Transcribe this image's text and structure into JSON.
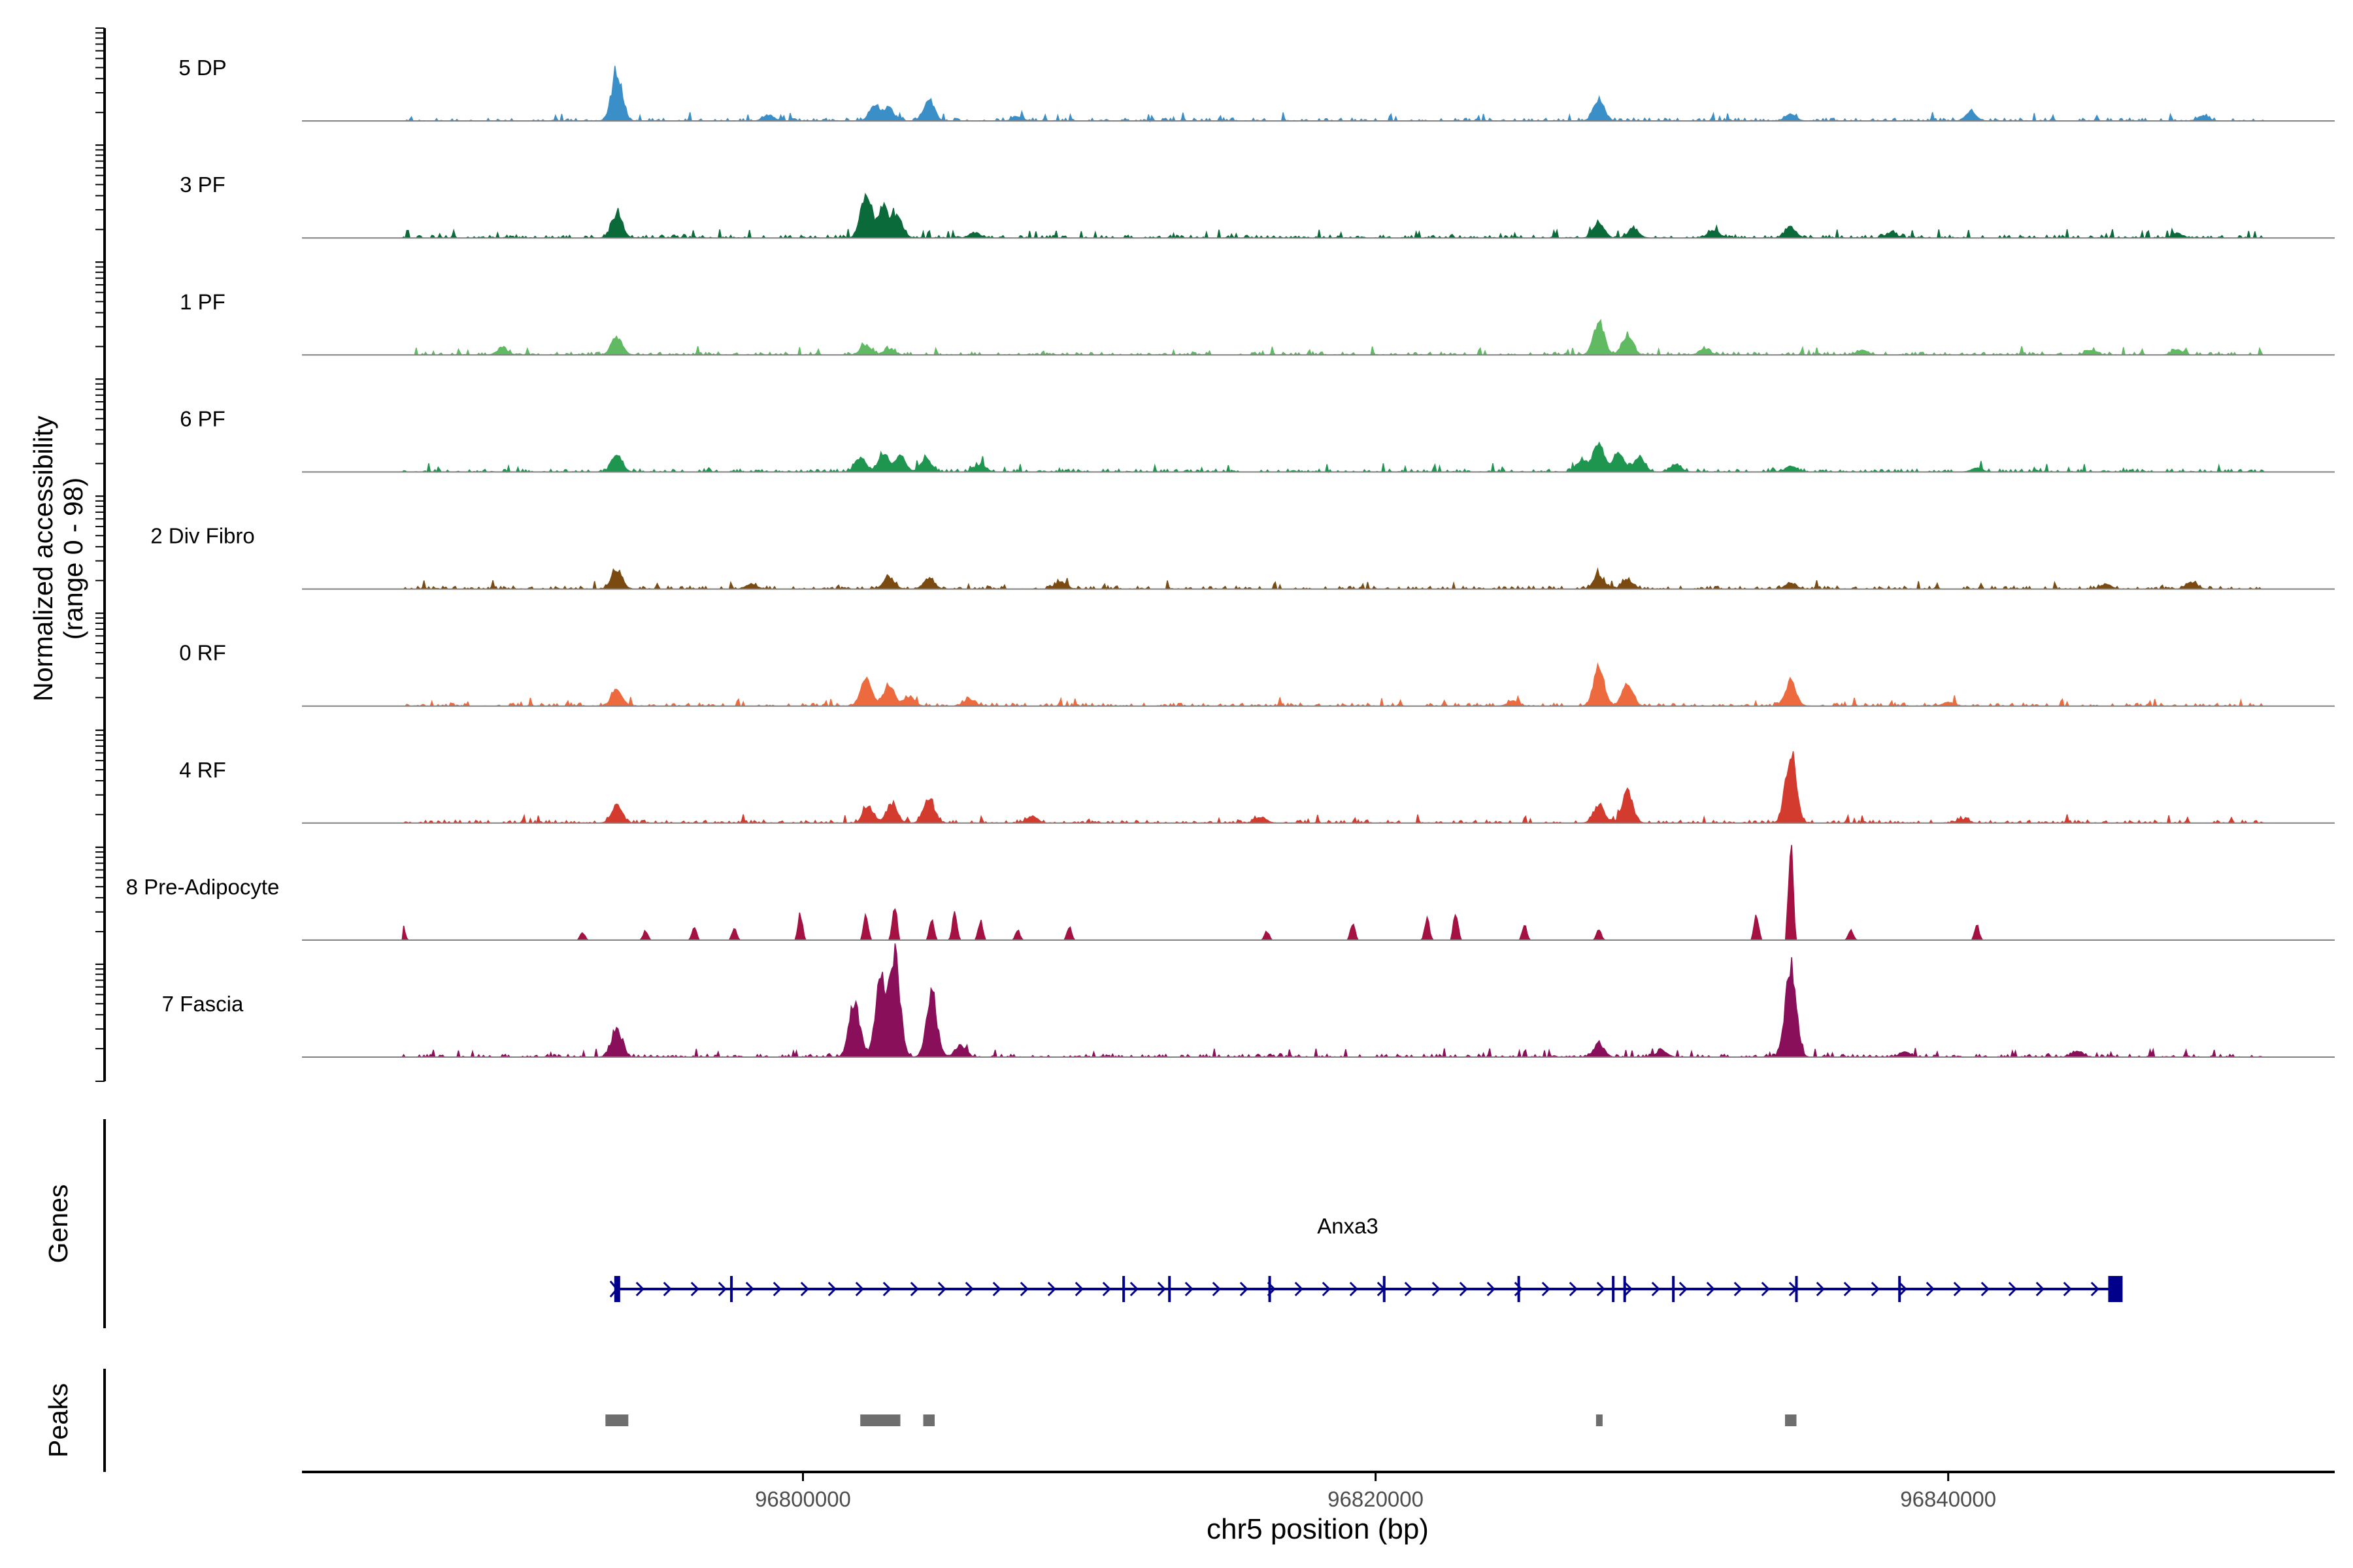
{
  "chart_data": {
    "type": "area",
    "xlabel": "chr5 position (bp)",
    "ylabel_line1": "Normalized accessibility",
    "ylabel_line2": "(range 0 - 98)",
    "yrange": [
      0,
      98
    ],
    "xlim": [
      96782500,
      96853500
    ],
    "xticks": [
      96800000,
      96820000,
      96840000
    ],
    "xtick_labels": [
      "96800000",
      "96820000",
      "96840000"
    ],
    "series": [
      {
        "name": "5 DP",
        "color": "#3a8fc9",
        "peaks": [
          [
            96793500,
            0.48
          ],
          [
            96798800,
            0.06
          ],
          [
            96802500,
            0.15
          ],
          [
            96803000,
            0.12
          ],
          [
            96804400,
            0.22
          ],
          [
            96807500,
            0.04
          ],
          [
            96827800,
            0.22
          ],
          [
            96834500,
            0.07
          ],
          [
            96840800,
            0.09
          ],
          [
            96848900,
            0.05
          ]
        ]
      },
      {
        "name": "3 PF",
        "color": "#0b6a3a",
        "peaks": [
          [
            96793500,
            0.25
          ],
          [
            96802200,
            0.45
          ],
          [
            96802800,
            0.32
          ],
          [
            96803300,
            0.22
          ],
          [
            96806000,
            0.05
          ],
          [
            96827800,
            0.16
          ],
          [
            96829000,
            0.09
          ],
          [
            96831800,
            0.08
          ],
          [
            96834500,
            0.11
          ],
          [
            96838000,
            0.05
          ],
          [
            96848000,
            0.04
          ]
        ]
      },
      {
        "name": "1 PF",
        "color": "#5fba62",
        "peaks": [
          [
            96793500,
            0.19
          ],
          [
            96789500,
            0.07
          ],
          [
            96802200,
            0.1
          ],
          [
            96803000,
            0.06
          ],
          [
            96827800,
            0.35
          ],
          [
            96828800,
            0.21
          ],
          [
            96831500,
            0.06
          ],
          [
            96837000,
            0.05
          ],
          [
            96845000,
            0.05
          ],
          [
            96848000,
            0.05
          ]
        ]
      },
      {
        "name": "6 PF",
        "color": "#1f9650",
        "peaks": [
          [
            96793500,
            0.17
          ],
          [
            96802000,
            0.15
          ],
          [
            96802800,
            0.18
          ],
          [
            96803400,
            0.17
          ],
          [
            96804300,
            0.14
          ],
          [
            96806200,
            0.08
          ],
          [
            96827200,
            0.12
          ],
          [
            96827800,
            0.3
          ],
          [
            96828500,
            0.2
          ],
          [
            96829200,
            0.16
          ],
          [
            96830500,
            0.07
          ],
          [
            96834500,
            0.06
          ],
          [
            96841000,
            0.04
          ]
        ]
      },
      {
        "name": "2 Div Fibro",
        "color": "#7a4a10",
        "peaks": [
          [
            96793500,
            0.2
          ],
          [
            96798200,
            0.05
          ],
          [
            96803000,
            0.12
          ],
          [
            96804400,
            0.11
          ],
          [
            96809000,
            0.07
          ],
          [
            96827800,
            0.13
          ],
          [
            96828800,
            0.1
          ],
          [
            96834500,
            0.06
          ],
          [
            96845500,
            0.05
          ],
          [
            96848500,
            0.07
          ]
        ]
      },
      {
        "name": "0 RF",
        "color": "#ec6a3d",
        "peaks": [
          [
            96793500,
            0.17
          ],
          [
            96802200,
            0.3
          ],
          [
            96803000,
            0.22
          ],
          [
            96803700,
            0.1
          ],
          [
            96805800,
            0.07
          ],
          [
            96824800,
            0.05
          ],
          [
            96827800,
            0.4
          ],
          [
            96828800,
            0.23
          ],
          [
            96834500,
            0.25
          ],
          [
            96840000,
            0.04
          ]
        ]
      },
      {
        "name": "4 RF",
        "color": "#d33b2e",
        "peaks": [
          [
            96793500,
            0.18
          ],
          [
            96802300,
            0.16
          ],
          [
            96803100,
            0.2
          ],
          [
            96804400,
            0.25
          ],
          [
            96808000,
            0.07
          ],
          [
            96816000,
            0.06
          ],
          [
            96827800,
            0.18
          ],
          [
            96828800,
            0.32
          ],
          [
            96834500,
            0.72
          ],
          [
            96840500,
            0.04
          ]
        ]
      },
      {
        "name": "8 Pre-Adipocyte",
        "color": "#a41142",
        "peaks": [
          [
            96786000,
            0.18
          ],
          [
            96792300,
            0.08
          ],
          [
            96794500,
            0.1
          ],
          [
            96796200,
            0.13
          ],
          [
            96797600,
            0.12
          ],
          [
            96799900,
            0.27
          ],
          [
            96802200,
            0.25
          ],
          [
            96803200,
            0.38
          ],
          [
            96804500,
            0.22
          ],
          [
            96805300,
            0.3
          ],
          [
            96806200,
            0.2
          ],
          [
            96807500,
            0.1
          ],
          [
            96809300,
            0.14
          ],
          [
            96816200,
            0.09
          ],
          [
            96819200,
            0.17
          ],
          [
            96821800,
            0.22
          ],
          [
            96822800,
            0.3
          ],
          [
            96825200,
            0.15
          ],
          [
            96827800,
            0.12
          ],
          [
            96833300,
            0.27
          ],
          [
            96834500,
            1.0
          ],
          [
            96836600,
            0.11
          ],
          [
            96841000,
            0.16
          ]
        ]
      },
      {
        "name": "7 Fascia",
        "color": "#8a0f5a",
        "peaks": [
          [
            96793500,
            0.28
          ],
          [
            96801800,
            0.55
          ],
          [
            96802700,
            0.75
          ],
          [
            96803200,
            1.05
          ],
          [
            96804500,
            0.6
          ],
          [
            96805500,
            0.12
          ],
          [
            96827800,
            0.13
          ],
          [
            96830000,
            0.07
          ],
          [
            96834500,
            0.95
          ],
          [
            96838500,
            0.05
          ],
          [
            96844500,
            0.06
          ]
        ]
      }
    ],
    "genes_label": "Genes",
    "gene": {
      "name": "Anxa3",
      "start": 96793500,
      "end": 96846000,
      "strand": "+",
      "exons": [
        96793500,
        96797500,
        96811200,
        96812800,
        96816300,
        96820300,
        96825000,
        96828300,
        96828700,
        96830400,
        96834700,
        96838300,
        96846000
      ]
    },
    "peaks_label": "Peaks",
    "peak_regions": [
      [
        96793100,
        96793900
      ],
      [
        96802000,
        96803400
      ],
      [
        96804200,
        96804600
      ],
      [
        96827700,
        96827900
      ],
      [
        96834300,
        96834700
      ]
    ]
  }
}
